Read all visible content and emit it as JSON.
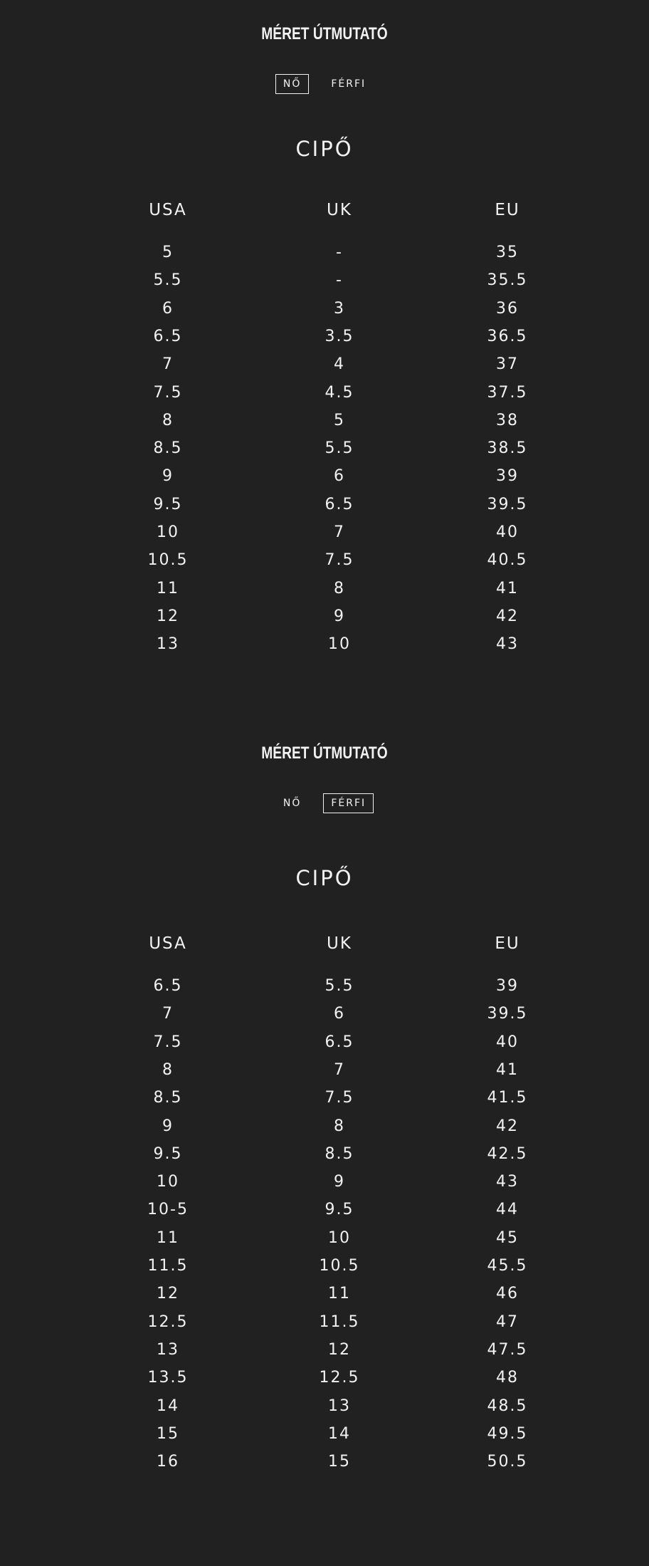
{
  "guides": [
    {
      "title": "MÉRET ÚTMUTATÓ",
      "tabs": [
        {
          "label": "NŐ",
          "active": true
        },
        {
          "label": "FÉRFI",
          "active": false
        }
      ],
      "category": "CIPŐ",
      "columns": [
        "USA",
        "UK",
        "EU"
      ],
      "rows": [
        [
          "5",
          "-",
          "35"
        ],
        [
          "5.5",
          "-",
          "35.5"
        ],
        [
          "6",
          "3",
          "36"
        ],
        [
          "6.5",
          "3.5",
          "36.5"
        ],
        [
          "7",
          "4",
          "37"
        ],
        [
          "7.5",
          "4.5",
          "37.5"
        ],
        [
          "8",
          "5",
          "38"
        ],
        [
          "8.5",
          "5.5",
          "38.5"
        ],
        [
          "9",
          "6",
          "39"
        ],
        [
          "9.5",
          "6.5",
          "39.5"
        ],
        [
          "10",
          "7",
          "40"
        ],
        [
          "10.5",
          "7.5",
          "40.5"
        ],
        [
          "11",
          "8",
          "41"
        ],
        [
          "12",
          "9",
          "42"
        ],
        [
          "13",
          "10",
          "43"
        ]
      ]
    },
    {
      "title": "MÉRET ÚTMUTATÓ",
      "tabs": [
        {
          "label": "NŐ",
          "active": false
        },
        {
          "label": "FÉRFI",
          "active": true
        }
      ],
      "category": "CIPŐ",
      "columns": [
        "USA",
        "UK",
        "EU"
      ],
      "rows": [
        [
          "6.5",
          "5.5",
          "39"
        ],
        [
          "7",
          "6",
          "39.5"
        ],
        [
          "7.5",
          "6.5",
          "40"
        ],
        [
          "8",
          "7",
          "41"
        ],
        [
          "8.5",
          "7.5",
          "41.5"
        ],
        [
          "9",
          "8",
          "42"
        ],
        [
          "9.5",
          "8.5",
          "42.5"
        ],
        [
          "10",
          "9",
          "43"
        ],
        [
          "10-5",
          "9.5",
          "44"
        ],
        [
          "11",
          "10",
          "45"
        ],
        [
          "11.5",
          "10.5",
          "45.5"
        ],
        [
          "12",
          "11",
          "46"
        ],
        [
          "12.5",
          "11.5",
          "47"
        ],
        [
          "13",
          "12",
          "47.5"
        ],
        [
          "13.5",
          "12.5",
          "48"
        ],
        [
          "14",
          "13",
          "48.5"
        ],
        [
          "15",
          "14",
          "49.5"
        ],
        [
          "16",
          "15",
          "50.5"
        ]
      ]
    }
  ]
}
